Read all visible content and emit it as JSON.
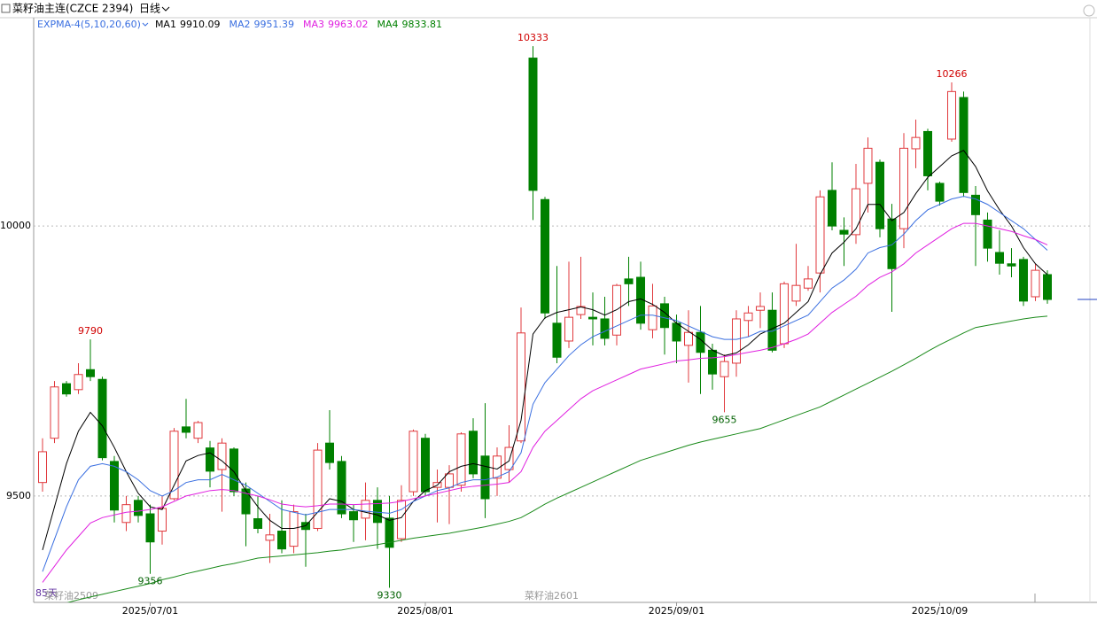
{
  "header": {
    "title": "菜籽油主连(CZCE 2394)",
    "period": "日线"
  },
  "chart_data": {
    "type": "candlestick",
    "indicator": "EXPMA-4(5,10,20,60)",
    "up_color": "#e0383c",
    "down_color": "#008000",
    "ylim": [
      9303,
      10389
    ],
    "yticks": [
      9500,
      10000
    ],
    "grid": true,
    "categories": [
      null,
      null,
      null,
      null,
      null,
      null,
      null,
      null,
      null,
      "2025/07/01",
      null,
      null,
      null,
      null,
      null,
      null,
      null,
      null,
      null,
      null,
      null,
      null,
      null,
      null,
      null,
      null,
      null,
      null,
      null,
      null,
      null,
      null,
      "2025/08/01",
      null,
      null,
      null,
      null,
      null,
      null,
      null,
      null,
      null,
      null,
      null,
      null,
      null,
      null,
      null,
      null,
      null,
      null,
      null,
      null,
      "2025/09/01",
      null,
      null,
      null,
      null,
      null,
      null,
      null,
      null,
      null,
      null,
      null,
      null,
      null,
      null,
      null,
      null,
      null,
      null,
      null,
      null,
      null,
      "2025/10/09",
      null,
      null,
      null,
      null,
      null,
      null,
      null,
      null,
      null
    ],
    "open": [
      9525,
      9607,
      9708,
      9697,
      9734,
      9716,
      9564,
      9451,
      9492,
      9467,
      9435,
      9495,
      9628,
      9607,
      9589,
      9549,
      9587,
      9513,
      9458,
      9418,
      9435,
      9407,
      9451,
      9440,
      9598,
      9564,
      9471,
      9459,
      9492,
      9459,
      9421,
      9508,
      9607,
      9516,
      9516,
      9520,
      9620,
      9574,
      9533,
      9549,
      9602,
      10311,
      10049,
      9820,
      9787,
      9836,
      9831,
      9828,
      9798,
      9902,
      9905,
      9808,
      9856,
      9820,
      9779,
      9803,
      9770,
      9721,
      9746,
      9825,
      9844,
      9844,
      9782,
      9861,
      9885,
      9913,
      10066,
      9992,
      9984,
      10079,
      10118,
      10013,
      9995,
      10143,
      10175,
      10079,
      10161,
      10238,
      10057,
      10011,
      9951,
      9930,
      9938,
      9869,
      9910
    ],
    "high": [
      9607,
      9713,
      9713,
      9746,
      9790,
      9721,
      9574,
      9500,
      9500,
      9484,
      9500,
      9626,
      9680,
      9639,
      9602,
      9607,
      9590,
      9525,
      9500,
      9467,
      9492,
      9484,
      9467,
      9598,
      9659,
      9574,
      9484,
      9525,
      9516,
      9500,
      9520,
      9623,
      9615,
      9549,
      9557,
      9618,
      9644,
      9672,
      9590,
      9631,
      9849,
      10333,
      10054,
      9926,
      9934,
      9943,
      9877,
      9869,
      9893,
      9943,
      9934,
      9893,
      9869,
      9836,
      9844,
      9852,
      9782,
      9762,
      9844,
      9852,
      9877,
      9877,
      9897,
      9967,
      9926,
      10066,
      10118,
      10016,
      10115,
      10164,
      10123,
      10041,
      10172,
      10197,
      10180,
      10082,
      10266,
      10249,
      10074,
      10025,
      9992,
      9959,
      9943,
      9930,
      9918
    ],
    "low": [
      9508,
      9598,
      9684,
      9689,
      9713,
      9566,
      9451,
      9435,
      9451,
      9356,
      9410,
      9492,
      9607,
      9598,
      9516,
      9471,
      9500,
      9407,
      9431,
      9376,
      9394,
      9394,
      9369,
      9435,
      9549,
      9459,
      9415,
      9418,
      9402,
      9330,
      9415,
      9500,
      9500,
      9451,
      9448,
      9508,
      9533,
      9459,
      9500,
      9525,
      9598,
      10011,
      9828,
      9746,
      9774,
      9828,
      9779,
      9779,
      9779,
      9852,
      9808,
      9792,
      9762,
      9746,
      9710,
      9689,
      9697,
      9655,
      9721,
      9795,
      9811,
      9766,
      9774,
      9852,
      9880,
      9877,
      9992,
      9926,
      9967,
      10025,
      9979,
      9841,
      9959,
      10107,
      10066,
      10038,
      10156,
      10054,
      9926,
      9934,
      9910,
      9905,
      9852,
      9861,
      9856
    ],
    "close": [
      9582,
      9702,
      9689,
      9725,
      9721,
      9571,
      9474,
      9484,
      9464,
      9415,
      9477,
      9620,
      9618,
      9636,
      9546,
      9598,
      9508,
      9467,
      9440,
      9428,
      9402,
      9471,
      9438,
      9585,
      9562,
      9467,
      9456,
      9492,
      9451,
      9405,
      9492,
      9620,
      9508,
      9525,
      9541,
      9615,
      9541,
      9495,
      9574,
      9590,
      9802,
      10066,
      9839,
      9757,
      9831,
      9851,
      9828,
      9792,
      9890,
      9893,
      9820,
      9852,
      9812,
      9787,
      9803,
      9766,
      9726,
      9749,
      9828,
      9839,
      9851,
      9770,
      9893,
      9890,
      9902,
      10054,
      10000,
      9985,
      10069,
      10144,
      9995,
      9921,
      10144,
      10164,
      10093,
      10046,
      10249,
      10062,
      10021,
      9959,
      9931,
      9926,
      9861,
      9918,
      9864
    ],
    "high_labels": [
      9790,
      10333,
      10266
    ],
    "low_labels": [
      9356,
      9330,
      9655
    ],
    "series": [
      {
        "name": "MA1",
        "latest": 9910.09,
        "color": "#000000",
        "values": [
          9400,
          9480,
          9560,
          9620,
          9655,
          9630,
          9590,
          9545,
          9505,
          9480,
          9475,
          9520,
          9565,
          9575,
          9580,
          9565,
          9545,
          9510,
          9480,
          9455,
          9440,
          9440,
          9445,
          9470,
          9495,
          9490,
          9475,
          9470,
          9465,
          9455,
          9460,
          9490,
          9510,
          9520,
          9545,
          9555,
          9560,
          9555,
          9550,
          9565,
          9640,
          9800,
          9830,
          9840,
          9845,
          9850,
          9845,
          9835,
          9845,
          9860,
          9865,
          9855,
          9840,
          9820,
          9805,
          9790,
          9770,
          9760,
          9765,
          9780,
          9800,
          9810,
          9820,
          9840,
          9860,
          9910,
          9950,
          9970,
          9995,
          10040,
          10040,
          10010,
          10025,
          10060,
          10090,
          10110,
          10130,
          10140,
          10110,
          10065,
          10030,
          10000,
          9960,
          9930,
          9910
        ]
      },
      {
        "name": "MA2",
        "latest": 9951.39,
        "color": "#3a6fe0",
        "values": [
          9360,
          9420,
          9480,
          9530,
          9555,
          9560,
          9555,
          9545,
          9530,
          9510,
          9500,
          9510,
          9525,
          9530,
          9530,
          9540,
          9530,
          9520,
          9505,
          9490,
          9475,
          9470,
          9465,
          9470,
          9475,
          9475,
          9475,
          9472,
          9470,
          9468,
          9475,
          9490,
          9500,
          9510,
          9515,
          9525,
          9530,
          9530,
          9535,
          9545,
          9580,
          9670,
          9710,
          9735,
          9760,
          9780,
          9795,
          9805,
          9815,
          9825,
          9835,
          9835,
          9830,
          9825,
          9815,
          9805,
          9795,
          9790,
          9790,
          9795,
          9805,
          9805,
          9815,
          9825,
          9835,
          9860,
          9885,
          9900,
          9920,
          9950,
          9960,
          9965,
          9985,
          10010,
          10030,
          10040,
          10050,
          10055,
          10050,
          10040,
          10025,
          10010,
          9995,
          9975,
          9955
        ]
      },
      {
        "name": "MA3",
        "latest": 9963.02,
        "color": "#e020e0",
        "values": [
          9340,
          9370,
          9400,
          9425,
          9450,
          9460,
          9465,
          9470,
          9472,
          9475,
          9480,
          9490,
          9500,
          9505,
          9510,
          9512,
          9510,
          9505,
          9500,
          9493,
          9485,
          9482,
          9480,
          9482,
          9485,
          9485,
          9484,
          9485,
          9486,
          9487,
          9490,
          9495,
          9500,
          9505,
          9510,
          9515,
          9518,
          9520,
          9522,
          9525,
          9545,
          9590,
          9620,
          9640,
          9660,
          9680,
          9695,
          9705,
          9715,
          9725,
          9735,
          9740,
          9745,
          9750,
          9752,
          9755,
          9756,
          9758,
          9762,
          9766,
          9770,
          9775,
          9782,
          9790,
          9800,
          9820,
          9840,
          9855,
          9870,
          9890,
          9905,
          9915,
          9930,
          9950,
          9965,
          9980,
          9995,
          10005,
          10005,
          10000,
          9995,
          9990,
          9982,
          9975,
          9965
        ]
      },
      {
        "name": "MA4",
        "latest": 9833.81,
        "color": "#1a8a1a",
        "values": [
          9290,
          9296,
          9302,
          9308,
          9313,
          9318,
          9323,
          9328,
          9333,
          9338,
          9345,
          9350,
          9356,
          9361,
          9366,
          9371,
          9375,
          9380,
          9385,
          9387,
          9389,
          9391,
          9393,
          9395,
          9398,
          9400,
          9404,
          9407,
          9410,
          9414,
          9418,
          9422,
          9425,
          9428,
          9431,
          9435,
          9439,
          9443,
          9448,
          9453,
          9460,
          9472,
          9485,
          9496,
          9506,
          9516,
          9526,
          9536,
          9546,
          9556,
          9566,
          9573,
          9580,
          9587,
          9594,
          9600,
          9605,
          9610,
          9615,
          9620,
          9625,
          9633,
          9641,
          9649,
          9657,
          9665,
          9676,
          9687,
          9698,
          9709,
          9720,
          9731,
          9743,
          9755,
          9768,
          9780,
          9791,
          9802,
          9812,
          9816,
          9820,
          9824,
          9828,
          9831,
          9833
        ]
      }
    ]
  },
  "footer": [
    "85天",
    "菜籽油2509",
    "菜籽油2601"
  ]
}
